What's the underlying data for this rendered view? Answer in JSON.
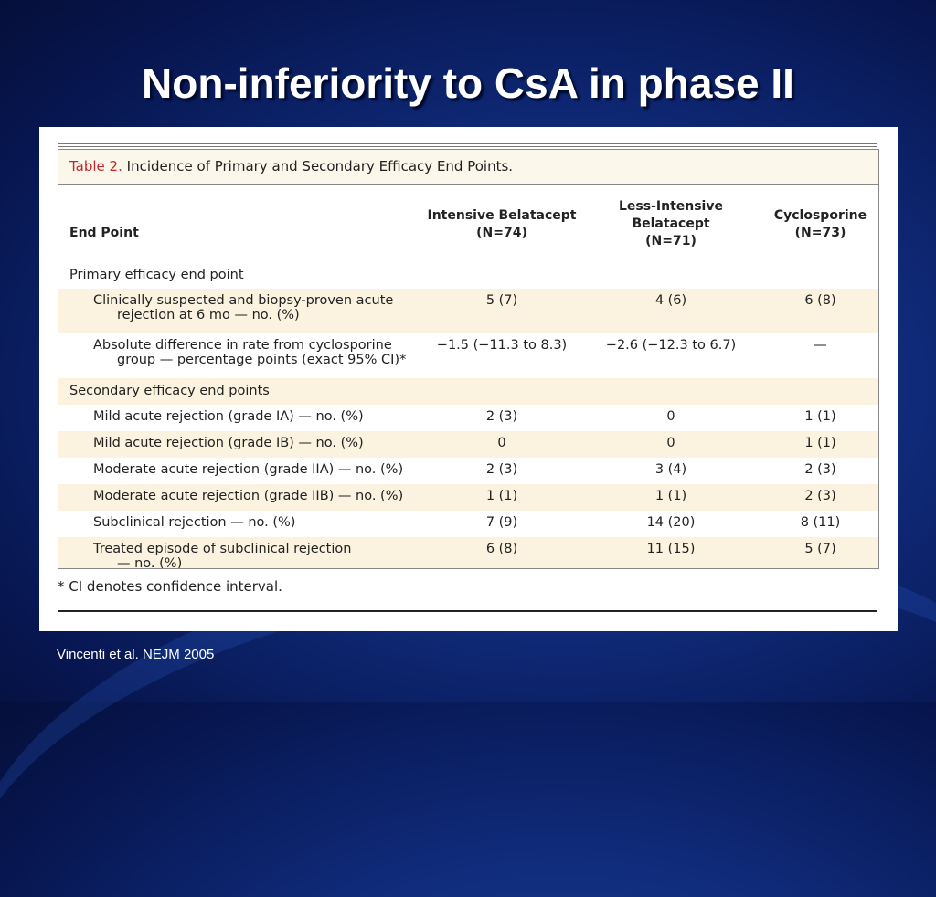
{
  "slide": {
    "title": "Non-inferiority to CsA in phase II",
    "citation": "Vincenti et al. NEJM 2005"
  },
  "table": {
    "caption_label": "Table 2.",
    "caption_text": " Incidence of Primary and Secondary Efficacy End Points.",
    "header": {
      "end_point": "End Point",
      "col1_name": "Intensive Belatacept",
      "col1_n": "(N=74)",
      "col2_name": "Less-Intensive Belatacept",
      "col2_n": "(N=71)",
      "col3_name": "Cyclosporine",
      "col3_n": "(N=73)"
    },
    "primary_section": "Primary efficacy end point",
    "primary_rows": [
      {
        "label_line1": "Clinically suspected and biopsy-proven acute",
        "label_line2": "rejection at 6 mo — no. (%)",
        "intensive": "5 (7)",
        "less_intensive": "4 (6)",
        "cyclosporine": "6 (8)"
      },
      {
        "label_line1": "Absolute difference in rate from cyclosporine",
        "label_line2": "group — percentage points (exact 95% CI)*",
        "intensive": "−1.5 (−11.3 to 8.3)",
        "less_intensive": "−2.6 (−12.3 to 6.7)",
        "cyclosporine": "—"
      }
    ],
    "secondary_section": "Secondary efficacy end points",
    "secondary_rows": [
      {
        "label": "Mild acute rejection (grade IA) — no. (%)",
        "intensive": "2 (3)",
        "less_intensive": "0",
        "cyclosporine": "1 (1)"
      },
      {
        "label": "Mild acute rejection (grade IB) — no. (%)",
        "intensive": "0",
        "less_intensive": "0",
        "cyclosporine": "1 (1)"
      },
      {
        "label": "Moderate acute rejection (grade IIA) — no. (%)",
        "intensive": "2 (3)",
        "less_intensive": "3 (4)",
        "cyclosporine": "2 (3)"
      },
      {
        "label": "Moderate acute rejection (grade IIB) — no. (%)",
        "intensive": "1 (1)",
        "less_intensive": "1 (1)",
        "cyclosporine": "2 (3)"
      },
      {
        "label": "Subclinical rejection — no. (%)",
        "intensive": "7 (9)",
        "less_intensive": "14 (20)",
        "cyclosporine": "8 (11)"
      }
    ],
    "last_row": {
      "label_line1": "Treated episode of subclinical rejection",
      "label_line2": "— no. (%)",
      "intensive": "6 (8)",
      "less_intensive": "11 (15)",
      "cyclosporine": "5 (7)"
    },
    "footnote": "* CI denotes confidence interval."
  }
}
